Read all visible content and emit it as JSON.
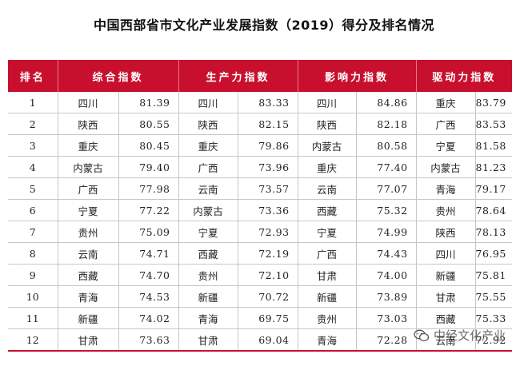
{
  "title": "中国西部省市文化产业发展指数（2019）得分及排名情况",
  "headers": {
    "rank": "排名",
    "composite": "综合指数",
    "production": "生产力指数",
    "influence": "影响力指数",
    "driving": "驱动力指数"
  },
  "rows": [
    {
      "rank": "1",
      "c_name": "四川",
      "c_val": "81.39",
      "p_name": "四川",
      "p_val": "83.33",
      "i_name": "四川",
      "i_val": "84.86",
      "d_name": "重庆",
      "d_val": "83.79"
    },
    {
      "rank": "2",
      "c_name": "陕西",
      "c_val": "80.55",
      "p_name": "陕西",
      "p_val": "82.15",
      "i_name": "陕西",
      "i_val": "82.18",
      "d_name": "广西",
      "d_val": "83.53"
    },
    {
      "rank": "3",
      "c_name": "重庆",
      "c_val": "80.45",
      "p_name": "重庆",
      "p_val": "79.86",
      "i_name": "内蒙古",
      "i_val": "80.58",
      "d_name": "宁夏",
      "d_val": "81.58"
    },
    {
      "rank": "4",
      "c_name": "内蒙古",
      "c_val": "79.40",
      "p_name": "广西",
      "p_val": "73.96",
      "i_name": "重庆",
      "i_val": "77.40",
      "d_name": "内蒙古",
      "d_val": "81.23"
    },
    {
      "rank": "5",
      "c_name": "广西",
      "c_val": "77.98",
      "p_name": "云南",
      "p_val": "73.57",
      "i_name": "云南",
      "i_val": "77.07",
      "d_name": "青海",
      "d_val": "79.17"
    },
    {
      "rank": "6",
      "c_name": "宁夏",
      "c_val": "77.22",
      "p_name": "内蒙古",
      "p_val": "73.36",
      "i_name": "西藏",
      "i_val": "75.32",
      "d_name": "贵州",
      "d_val": "78.64"
    },
    {
      "rank": "7",
      "c_name": "贵州",
      "c_val": "75.09",
      "p_name": "宁夏",
      "p_val": "72.93",
      "i_name": "宁夏",
      "i_val": "74.99",
      "d_name": "陕西",
      "d_val": "78.13"
    },
    {
      "rank": "8",
      "c_name": "云南",
      "c_val": "74.71",
      "p_name": "西藏",
      "p_val": "72.19",
      "i_name": "广西",
      "i_val": "74.43",
      "d_name": "四川",
      "d_val": "76.95"
    },
    {
      "rank": "9",
      "c_name": "西藏",
      "c_val": "74.70",
      "p_name": "贵州",
      "p_val": "72.10",
      "i_name": "甘肃",
      "i_val": "74.00",
      "d_name": "新疆",
      "d_val": "75.81"
    },
    {
      "rank": "10",
      "c_name": "青海",
      "c_val": "74.53",
      "p_name": "新疆",
      "p_val": "70.72",
      "i_name": "新疆",
      "i_val": "73.89",
      "d_name": "甘肃",
      "d_val": "75.55"
    },
    {
      "rank": "11",
      "c_name": "新疆",
      "c_val": "74.02",
      "p_name": "青海",
      "p_val": "69.75",
      "i_name": "贵州",
      "i_val": "73.03",
      "d_name": "西藏",
      "d_val": "75.33"
    },
    {
      "rank": "12",
      "c_name": "甘肃",
      "c_val": "73.63",
      "p_name": "甘肃",
      "p_val": "69.04",
      "i_name": "青海",
      "i_val": "72.28",
      "d_name": "云南",
      "d_val": "72.92"
    }
  ],
  "watermark": "中经文化产业",
  "colors": {
    "header_bg": "#c8102e",
    "header_text": "#ffffff",
    "grid": "#c7c7c7"
  }
}
